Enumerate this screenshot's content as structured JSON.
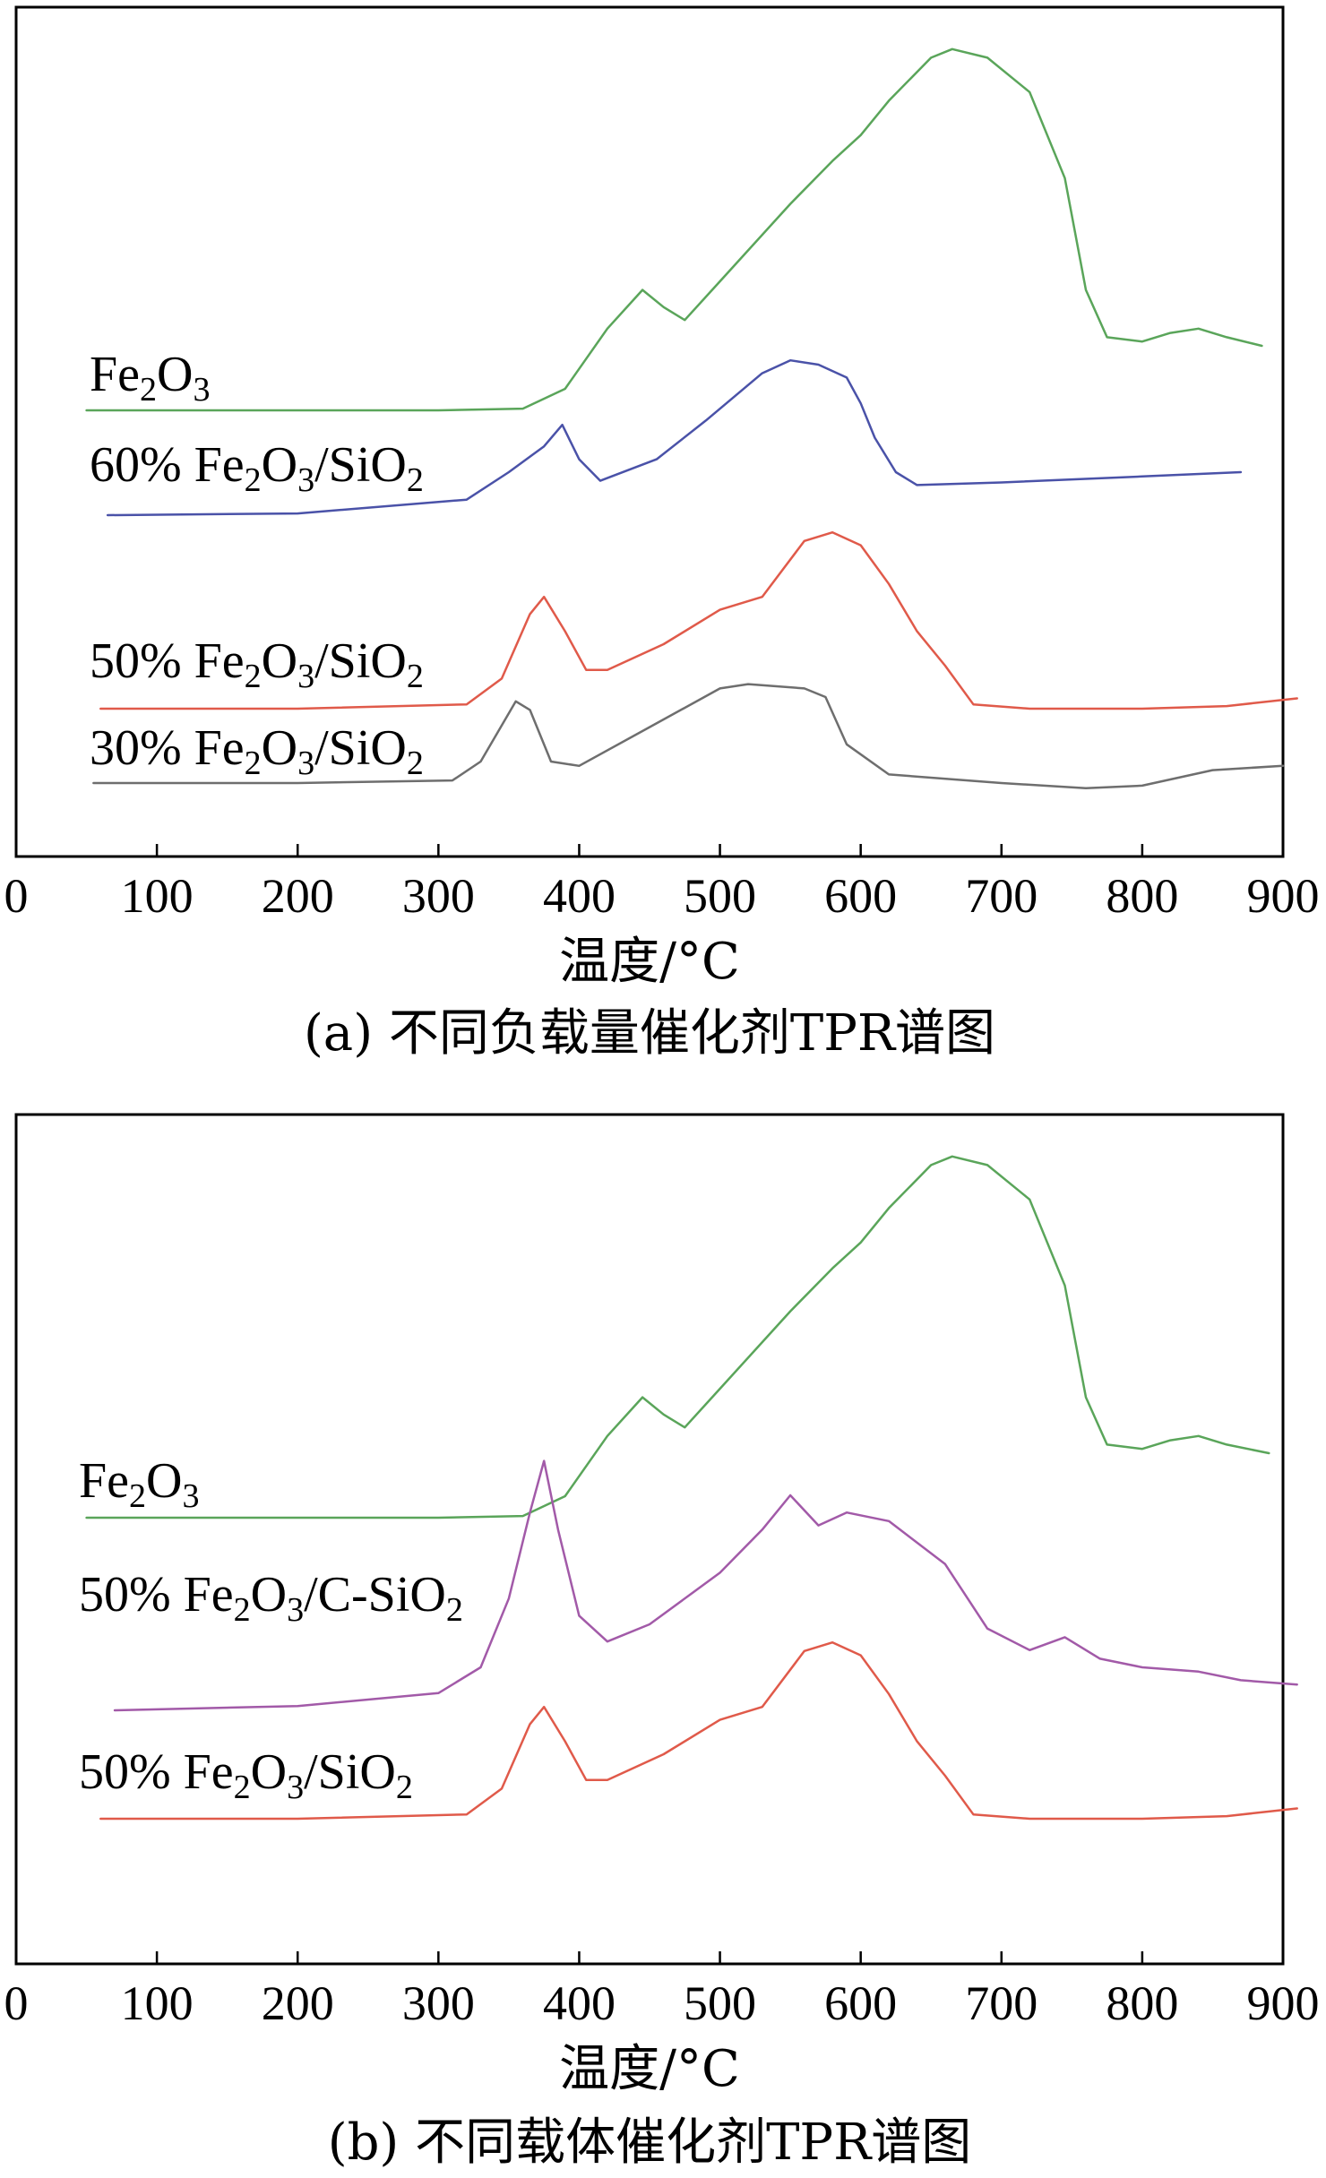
{
  "chart_data": [
    {
      "type": "line",
      "caption": "(a) 不同负载量催化剂TPR谱图",
      "xlabel": "温度/°C",
      "ylabel": "",
      "xlim": [
        0,
        900
      ],
      "x_ticks": [
        "0",
        "100",
        "200",
        "300",
        "400",
        "500",
        "600",
        "700",
        "800",
        "900"
      ],
      "y_ticks": "none",
      "grid": false,
      "series": [
        {
          "name": "Fe2O3",
          "label_parts": [
            {
              "t": "Fe"
            },
            {
              "t": "2",
              "sub": true
            },
            {
              "t": "O"
            },
            {
              "t": "3",
              "sub": true
            }
          ],
          "color": "#5aa55a",
          "points": [
            [
              50,
              1.0
            ],
            [
              300,
              1.0
            ],
            [
              360,
              1.2
            ],
            [
              390,
              3.5
            ],
            [
              420,
              10.5
            ],
            [
              445,
              15.0
            ],
            [
              460,
              13.0
            ],
            [
              475,
              11.5
            ],
            [
              500,
              16.0
            ],
            [
              550,
              25.0
            ],
            [
              580,
              30.0
            ],
            [
              600,
              33.0
            ],
            [
              620,
              37.0
            ],
            [
              650,
              42.0
            ],
            [
              665,
              43.0
            ],
            [
              690,
              42.0
            ],
            [
              720,
              38.0
            ],
            [
              745,
              28.0
            ],
            [
              760,
              15.0
            ],
            [
              775,
              9.5
            ],
            [
              800,
              9.0
            ],
            [
              820,
              10.0
            ],
            [
              840,
              10.5
            ],
            [
              860,
              9.5
            ],
            [
              885,
              8.5
            ]
          ]
        },
        {
          "name": "60% Fe2O3/SiO2",
          "label_parts": [
            {
              "t": "60% Fe"
            },
            {
              "t": "2",
              "sub": true
            },
            {
              "t": "O"
            },
            {
              "t": "3",
              "sub": true
            },
            {
              "t": "/SiO"
            },
            {
              "t": "2",
              "sub": true
            }
          ],
          "color": "#4a52a8",
          "points": [
            [
              65,
              1.0
            ],
            [
              200,
              1.2
            ],
            [
              320,
              2.8
            ],
            [
              350,
              6.0
            ],
            [
              375,
              9.0
            ],
            [
              388,
              11.5
            ],
            [
              400,
              7.5
            ],
            [
              415,
              5.0
            ],
            [
              455,
              7.5
            ],
            [
              490,
              12.0
            ],
            [
              530,
              17.5
            ],
            [
              550,
              19.0
            ],
            [
              570,
              18.5
            ],
            [
              590,
              17.0
            ],
            [
              600,
              14.0
            ],
            [
              610,
              10.0
            ],
            [
              625,
              6.0
            ],
            [
              640,
              4.5
            ],
            [
              700,
              4.8
            ],
            [
              800,
              5.5
            ],
            [
              870,
              6.0
            ]
          ]
        },
        {
          "name": "50% Fe2O3/SiO2",
          "label_parts": [
            {
              "t": "50% Fe"
            },
            {
              "t": "2",
              "sub": true
            },
            {
              "t": "O"
            },
            {
              "t": "3",
              "sub": true
            },
            {
              "t": "/SiO"
            },
            {
              "t": "2",
              "sub": true
            }
          ],
          "color": "#e05a4a",
          "points": [
            [
              60,
              1.0
            ],
            [
              200,
              1.0
            ],
            [
              320,
              1.5
            ],
            [
              345,
              4.5
            ],
            [
              365,
              12.0
            ],
            [
              375,
              14.0
            ],
            [
              390,
              10.0
            ],
            [
              405,
              5.5
            ],
            [
              420,
              5.5
            ],
            [
              460,
              8.5
            ],
            [
              500,
              12.5
            ],
            [
              530,
              14.0
            ],
            [
              560,
              20.5
            ],
            [
              580,
              21.5
            ],
            [
              600,
              20.0
            ],
            [
              620,
              15.5
            ],
            [
              640,
              10.0
            ],
            [
              660,
              6.0
            ],
            [
              680,
              1.5
            ],
            [
              720,
              1.0
            ],
            [
              800,
              1.0
            ],
            [
              860,
              1.3
            ],
            [
              910,
              2.2
            ]
          ]
        },
        {
          "name": "30% Fe2O3/SiO2",
          "label_parts": [
            {
              "t": "30% Fe"
            },
            {
              "t": "2",
              "sub": true
            },
            {
              "t": "O"
            },
            {
              "t": "3",
              "sub": true
            },
            {
              "t": "/SiO"
            },
            {
              "t": "2",
              "sub": true
            }
          ],
          "color": "#6e6e6e",
          "points": [
            [
              55,
              1.0
            ],
            [
              200,
              1.0
            ],
            [
              310,
              1.3
            ],
            [
              330,
              3.5
            ],
            [
              355,
              10.5
            ],
            [
              365,
              9.5
            ],
            [
              380,
              3.5
            ],
            [
              400,
              3.0
            ],
            [
              450,
              7.5
            ],
            [
              500,
              12.0
            ],
            [
              520,
              12.5
            ],
            [
              560,
              12.0
            ],
            [
              575,
              11.0
            ],
            [
              590,
              5.5
            ],
            [
              620,
              2.0
            ],
            [
              700,
              1.0
            ],
            [
              760,
              0.4
            ],
            [
              800,
              0.7
            ],
            [
              850,
              2.5
            ],
            [
              900,
              3.0
            ]
          ]
        }
      ]
    },
    {
      "type": "line",
      "caption": "(b) 不同载体催化剂TPR谱图",
      "xlabel": "温度/°C",
      "ylabel": "",
      "xlim": [
        0,
        900
      ],
      "x_ticks": [
        "0",
        "100",
        "200",
        "300",
        "400",
        "500",
        "600",
        "700",
        "800",
        "900"
      ],
      "y_ticks": "none",
      "grid": false,
      "series": [
        {
          "name": "Fe2O3",
          "label_parts": [
            {
              "t": "Fe"
            },
            {
              "t": "2",
              "sub": true
            },
            {
              "t": "O"
            },
            {
              "t": "3",
              "sub": true
            }
          ],
          "color": "#5aa55a",
          "points": [
            [
              50,
              1.0
            ],
            [
              300,
              1.0
            ],
            [
              360,
              1.2
            ],
            [
              390,
              3.5
            ],
            [
              420,
              10.5
            ],
            [
              445,
              15.0
            ],
            [
              460,
              13.0
            ],
            [
              475,
              11.5
            ],
            [
              500,
              16.0
            ],
            [
              550,
              25.0
            ],
            [
              580,
              30.0
            ],
            [
              600,
              33.0
            ],
            [
              620,
              37.0
            ],
            [
              650,
              42.0
            ],
            [
              665,
              43.0
            ],
            [
              690,
              42.0
            ],
            [
              720,
              38.0
            ],
            [
              745,
              28.0
            ],
            [
              760,
              15.0
            ],
            [
              775,
              9.5
            ],
            [
              800,
              9.0
            ],
            [
              820,
              10.0
            ],
            [
              840,
              10.5
            ],
            [
              860,
              9.5
            ],
            [
              890,
              8.5
            ]
          ]
        },
        {
          "name": "50% Fe2O3/C-SiO2",
          "label_parts": [
            {
              "t": "50% Fe"
            },
            {
              "t": "2",
              "sub": true
            },
            {
              "t": "O"
            },
            {
              "t": "3",
              "sub": true
            },
            {
              "t": "/C-SiO"
            },
            {
              "t": "2",
              "sub": true
            }
          ],
          "color": "#a25aa8",
          "points": [
            [
              70,
              1.0
            ],
            [
              200,
              1.5
            ],
            [
              300,
              3.0
            ],
            [
              330,
              6.0
            ],
            [
              350,
              14.0
            ],
            [
              365,
              24.0
            ],
            [
              375,
              30.0
            ],
            [
              385,
              22.0
            ],
            [
              400,
              12.0
            ],
            [
              420,
              9.0
            ],
            [
              450,
              11.0
            ],
            [
              500,
              17.0
            ],
            [
              530,
              22.0
            ],
            [
              550,
              26.0
            ],
            [
              570,
              22.5
            ],
            [
              590,
              24.0
            ],
            [
              620,
              23.0
            ],
            [
              660,
              18.0
            ],
            [
              690,
              10.5
            ],
            [
              720,
              8.0
            ],
            [
              745,
              9.5
            ],
            [
              770,
              7.0
            ],
            [
              800,
              6.0
            ],
            [
              840,
              5.5
            ],
            [
              870,
              4.5
            ],
            [
              910,
              4.0
            ]
          ]
        },
        {
          "name": "50% Fe2O3/SiO2",
          "label_parts": [
            {
              "t": "50% Fe"
            },
            {
              "t": "2",
              "sub": true
            },
            {
              "t": "O"
            },
            {
              "t": "3",
              "sub": true
            },
            {
              "t": "/SiO"
            },
            {
              "t": "2",
              "sub": true
            }
          ],
          "color": "#e05a4a",
          "points": [
            [
              60,
              1.0
            ],
            [
              200,
              1.0
            ],
            [
              320,
              1.5
            ],
            [
              345,
              4.5
            ],
            [
              365,
              12.0
            ],
            [
              375,
              14.0
            ],
            [
              390,
              10.0
            ],
            [
              405,
              5.5
            ],
            [
              420,
              5.5
            ],
            [
              460,
              8.5
            ],
            [
              500,
              12.5
            ],
            [
              530,
              14.0
            ],
            [
              560,
              20.5
            ],
            [
              580,
              21.5
            ],
            [
              600,
              20.0
            ],
            [
              620,
              15.5
            ],
            [
              640,
              10.0
            ],
            [
              660,
              6.0
            ],
            [
              680,
              1.5
            ],
            [
              720,
              1.0
            ],
            [
              800,
              1.0
            ],
            [
              860,
              1.3
            ],
            [
              910,
              2.2
            ]
          ]
        }
      ]
    }
  ]
}
